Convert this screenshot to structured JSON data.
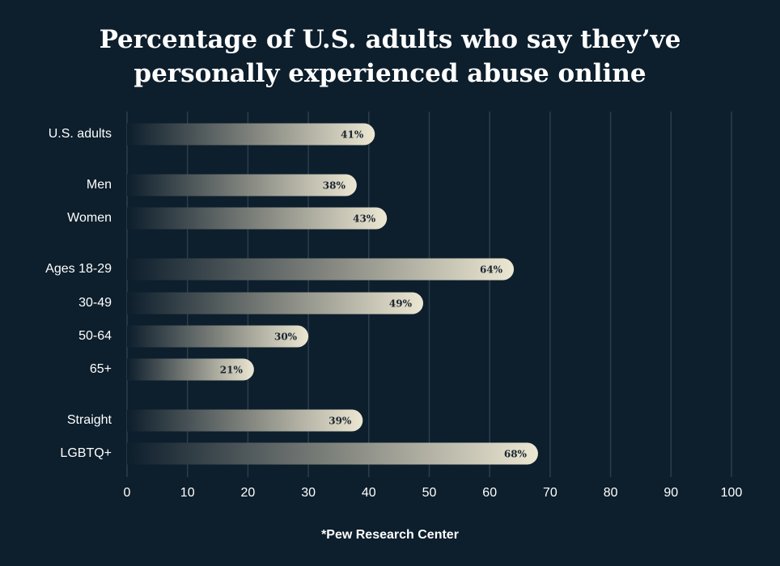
{
  "chart_data": {
    "type": "bar",
    "orientation": "horizontal",
    "title": "Percentage of U.S. adults who say they’ve personally experienced abuse online",
    "categories": [
      "U.S. adults",
      "Men",
      "Women",
      "Ages 18-29",
      "30-49",
      "50-64",
      "65+",
      "Straight",
      "LGBTQ+"
    ],
    "values": [
      41,
      38,
      43,
      64,
      49,
      30,
      21,
      39,
      68
    ],
    "value_labels": [
      "41%",
      "38%",
      "43%",
      "64%",
      "49%",
      "30%",
      "21%",
      "39%",
      "68%"
    ],
    "color": "#ece7d2",
    "xlim": [
      0,
      100
    ],
    "xticks": [
      0,
      10,
      20,
      30,
      40,
      50,
      60,
      70,
      80,
      90,
      100
    ],
    "grid": true,
    "source": "*Pew Research Center"
  }
}
